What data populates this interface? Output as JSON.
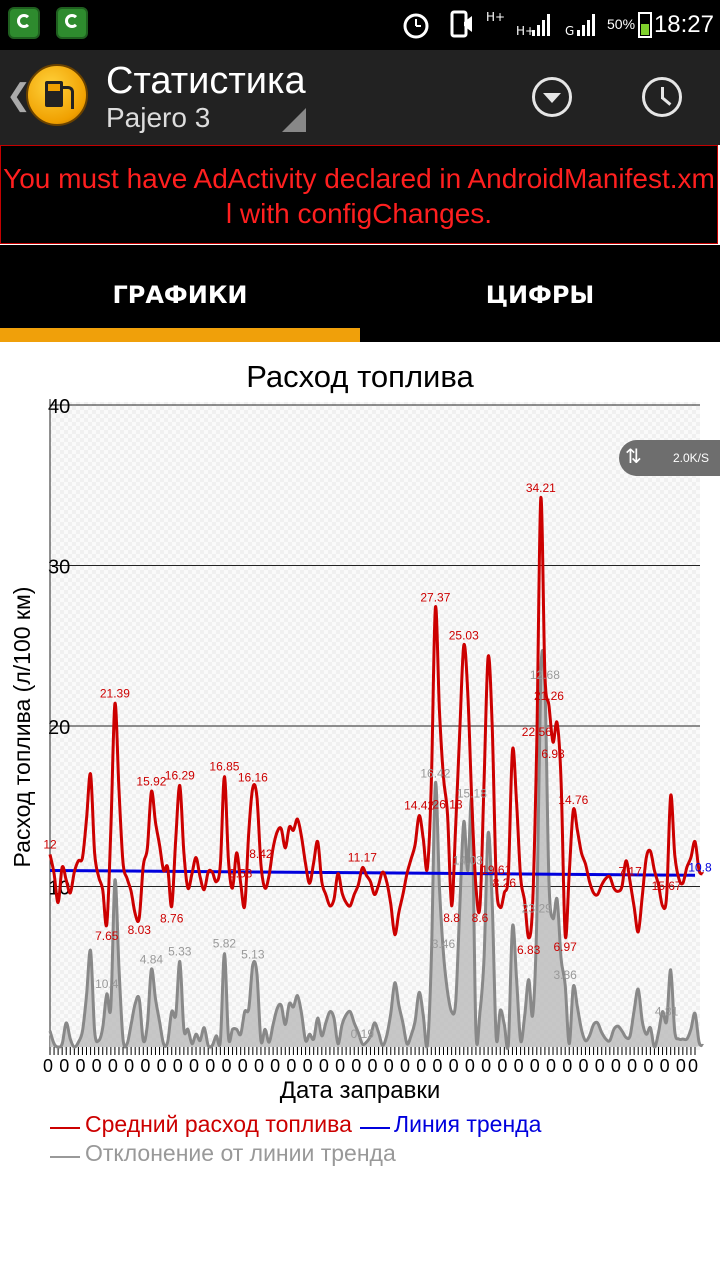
{
  "status_bar": {
    "time": "18:27",
    "battery": "50%",
    "network_1": "H+",
    "network_2": "H+",
    "network_3": "G",
    "icons": [
      "g-app-icon",
      "g-app-icon",
      "alarm-icon",
      "silent-icon",
      "signal-icon",
      "signal-icon",
      "battery-icon"
    ]
  },
  "action_bar": {
    "title": "Статистика",
    "subtitle": "Pajero 3",
    "icons": [
      "back-icon",
      "fuel-pump-logo",
      "dropdown-icon",
      "history-clock-icon"
    ]
  },
  "ad_error": "You must have AdActivity declared in AndroidManifest.xml with configChanges.",
  "tabs": [
    {
      "label": "ГРАФИКИ",
      "active": true
    },
    {
      "label": "ЦИФРЫ",
      "active": false
    }
  ],
  "colors": {
    "accent": "#f0a00a",
    "avg": "#cc0000",
    "trend": "#0000dd",
    "deviation": "#888888",
    "ad_text": "#ff1f1f"
  },
  "speed_indicator": "2.0K/S",
  "chart_data": {
    "type": "line",
    "title": "Расход топлива",
    "xlabel": "Дата заправки",
    "ylabel": "Расход топлива (л/100 км)",
    "ylim": [
      0,
      40
    ],
    "yticks": [
      40,
      30,
      20,
      10
    ],
    "grid": true,
    "legend_position": "bottom",
    "n_points": 160,
    "x_tick_label": "0",
    "series": [
      {
        "name": "Средний расход топлива",
        "color": "#cc0000",
        "values": [
          12.0,
          10.8,
          9.0,
          11.2,
          10.4,
          9.6,
          10.9,
          11.6,
          11.8,
          14.2,
          17.0,
          12.1,
          10.6,
          9.8,
          7.65,
          13.5,
          21.39,
          16.0,
          11.5,
          10.5,
          9.7,
          8.3,
          8.03,
          11.3,
          12.4,
          15.92,
          14.0,
          12.6,
          11.0,
          11.2,
          8.76,
          13.0,
          16.29,
          12.1,
          9.9,
          10.8,
          11.8,
          10.6,
          9.8,
          10.9,
          10.9,
          10.3,
          11.4,
          16.85,
          11.6,
          9.9,
          12.1,
          10.2,
          8.8,
          13.4,
          16.16,
          15.6,
          11.4,
          9.9,
          10.7,
          12.4,
          13.4,
          13.6,
          12.4,
          13.7,
          13.5,
          14.2,
          13.1,
          11.4,
          10.2,
          11.5,
          12.8,
          10.3,
          9.5,
          8.8,
          9.2,
          10.8,
          9.6,
          9.0,
          8.8,
          9.5,
          10.1,
          11.17,
          10.7,
          10.3,
          9.5,
          10.1,
          10.9,
          10.3,
          8.9,
          7.0,
          8.4,
          9.5,
          10.8,
          11.7,
          12.6,
          14.42,
          13.0,
          11.1,
          16.42,
          27.37,
          21.0,
          16.8,
          14.5,
          8.8,
          13.8,
          19.6,
          25.03,
          22.0,
          15.18,
          10.0,
          8.8,
          16.6,
          24.3,
          20.0,
          10.4,
          8.7,
          9.6,
          10.8,
          18.5,
          15.3,
          10.6,
          9.1,
          6.8,
          9.0,
          19.0,
          34.21,
          23.2,
          21.26,
          19.0,
          20.2,
          16.5,
          6.97,
          10.8,
          14.76,
          13.5,
          12.1,
          11.4,
          10.3,
          9.6,
          9.5,
          10.1,
          10.5,
          10.6,
          9.9,
          9.7,
          10.0,
          11.6,
          10.3,
          8.7,
          7.17,
          9.4,
          11.8,
          12.2,
          11.0,
          10.1,
          8.8,
          9.4,
          15.67,
          12.0,
          10.5,
          10.2,
          11.2,
          11.8,
          12.8,
          11.0,
          10.8
        ]
      },
      {
        "name": "Линия тренда",
        "color": "#0000dd",
        "start": 11.0,
        "end": 10.7
      },
      {
        "name": "Отклонение от линии тренда",
        "color": "#888888",
        "values": [
          1.0,
          0.2,
          0.0,
          0.2,
          1.5,
          0.5,
          0.0,
          0.3,
          1.0,
          3.2,
          6.0,
          1.0,
          0.4,
          1.2,
          3.3,
          2.5,
          10.4,
          4.9,
          0.5,
          0.2,
          1.4,
          2.7,
          3.0,
          0.4,
          1.4,
          4.84,
          3.0,
          1.6,
          0.2,
          0.3,
          2.2,
          2.0,
          5.33,
          1.1,
          1.1,
          0.2,
          0.8,
          0.4,
          1.2,
          0.1,
          0.1,
          0.7,
          0.4,
          5.82,
          0.6,
          1.1,
          1.1,
          0.8,
          2.2,
          2.4,
          5.13,
          4.6,
          0.4,
          1.1,
          0.3,
          1.4,
          2.4,
          2.6,
          1.4,
          2.7,
          2.5,
          3.2,
          2.1,
          0.4,
          0.8,
          0.5,
          1.8,
          0.7,
          1.5,
          2.2,
          1.8,
          0.2,
          1.4,
          2.0,
          2.2,
          1.5,
          0.9,
          0.19,
          0.3,
          0.7,
          1.5,
          0.9,
          0.1,
          0.7,
          2.1,
          4.0,
          2.6,
          1.5,
          0.2,
          0.7,
          1.6,
          3.4,
          2.0,
          0.1,
          5.42,
          16.42,
          10.0,
          5.8,
          3.46,
          2.2,
          2.8,
          8.6,
          14.03,
          11.0,
          15.18,
          1.0,
          2.2,
          5.6,
          13.3,
          9.0,
          0.6,
          2.3,
          1.4,
          0.2,
          7.5,
          4.3,
          0.4,
          1.9,
          4.2,
          2.0,
          8.0,
          23.29,
          22.56,
          10.26,
          8.0,
          9.2,
          5.5,
          3.86,
          0.2,
          3.76,
          2.5,
          1.1,
          0.4,
          0.7,
          1.4,
          1.5,
          0.9,
          0.5,
          0.4,
          1.1,
          1.3,
          1.0,
          0.6,
          0.7,
          2.3,
          3.6,
          1.6,
          0.8,
          1.2,
          0.0,
          0.9,
          2.2,
          1.6,
          4.81,
          1.0,
          0.5,
          0.5,
          0.5,
          1.1,
          2.1,
          0.3,
          0.1
        ]
      }
    ],
    "red_data_labels": [
      {
        "i": 16,
        "text": "21.39"
      },
      {
        "i": 14,
        "text": "7.65"
      },
      {
        "i": 22,
        "text": "8.03"
      },
      {
        "i": 25,
        "text": "15.92"
      },
      {
        "i": 30,
        "text": "8.76"
      },
      {
        "i": 32,
        "text": "16.29"
      },
      {
        "i": 43,
        "text": "16.85"
      },
      {
        "i": 50,
        "text": "16.16"
      },
      {
        "i": 47,
        "text": "9.53"
      },
      {
        "i": 52,
        "text": "8.42"
      },
      {
        "i": 77,
        "text": "11.17"
      },
      {
        "i": 91,
        "text": "14.42"
      },
      {
        "i": 95,
        "text": "27.37"
      },
      {
        "i": 98,
        "text": "26.13"
      },
      {
        "i": 102,
        "text": "25.03"
      },
      {
        "i": 99,
        "text": "8.8"
      },
      {
        "i": 106,
        "text": "8.6"
      },
      {
        "i": 110,
        "text": "19.61"
      },
      {
        "i": 112,
        "text": "8.26"
      },
      {
        "i": 118,
        "text": "6.83"
      },
      {
        "i": 121,
        "text": "34.21"
      },
      {
        "i": 120,
        "text": "22.56"
      },
      {
        "i": 123,
        "text": "21.26"
      },
      {
        "i": 124,
        "text": "6.93"
      },
      {
        "i": 127,
        "text": "6.97"
      },
      {
        "i": 129,
        "text": "14.76"
      },
      {
        "i": 143,
        "text": "7.17"
      },
      {
        "i": 152,
        "text": "15.67"
      },
      {
        "i": 0,
        "text": "12"
      }
    ],
    "gray_data_labels": [
      {
        "i": 14,
        "text": "10.4"
      },
      {
        "i": 25,
        "text": "4.84"
      },
      {
        "i": 32,
        "text": "5.33"
      },
      {
        "i": 43,
        "text": "5.82"
      },
      {
        "i": 50,
        "text": "5.13"
      },
      {
        "i": 77,
        "text": "0.19"
      },
      {
        "i": 95,
        "text": "16.42"
      },
      {
        "i": 97,
        "text": "3.46"
      },
      {
        "i": 104,
        "text": "15.18"
      },
      {
        "i": 103,
        "text": "14.03"
      },
      {
        "i": 120,
        "text": "23.29"
      },
      {
        "i": 122,
        "text": "12.68"
      },
      {
        "i": 127,
        "text": "3.86"
      },
      {
        "i": 152,
        "text": "4.81"
      }
    ],
    "right_edge_label": "10.8"
  }
}
